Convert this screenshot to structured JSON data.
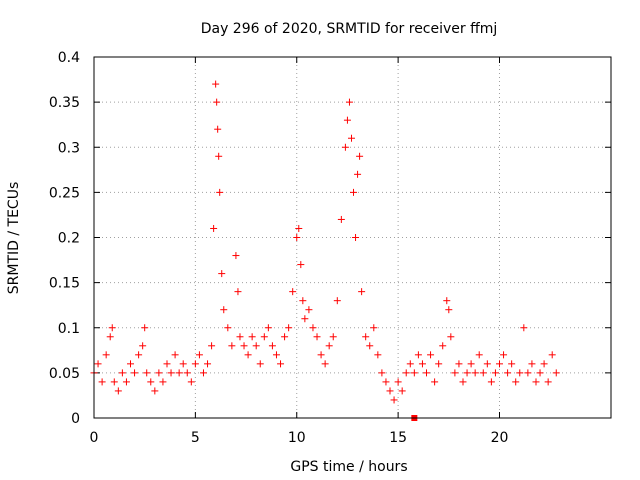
{
  "chart_data": {
    "type": "scatter",
    "title": "Day 296 of 2020, SRMTID for receiver ffmj",
    "xlabel": "GPS time / hours",
    "ylabel": "SRMTID / TECUs",
    "xlim": [
      0,
      25.5
    ],
    "ylim": [
      0,
      0.4
    ],
    "xticks": [
      0,
      5,
      10,
      15,
      20
    ],
    "xtick_labels": [
      "0",
      "5",
      "10",
      "15",
      "20"
    ],
    "yticks": [
      0,
      0.05,
      0.1,
      0.15,
      0.2,
      0.25,
      0.3,
      0.35,
      0.4
    ],
    "ytick_labels": [
      "0",
      "0.05",
      "0.1",
      "0.15",
      "0.2",
      "0.25",
      "0.3",
      "0.35",
      "0.4"
    ],
    "grid": true,
    "marker": "plus",
    "color": "#ff0000",
    "marker_hour_x": 15.8,
    "series": [
      {
        "name": "SRMTID",
        "x": [
          0.0,
          0.2,
          0.4,
          0.6,
          0.8,
          0.9,
          1.0,
          1.2,
          1.4,
          1.6,
          1.8,
          2.0,
          2.2,
          2.4,
          2.5,
          2.6,
          2.8,
          3.0,
          3.2,
          3.4,
          3.6,
          3.8,
          4.0,
          4.2,
          4.4,
          4.6,
          4.8,
          5.0,
          5.2,
          5.4,
          5.6,
          5.8,
          5.9,
          6.0,
          6.05,
          6.1,
          6.15,
          6.2,
          6.3,
          6.4,
          6.6,
          6.8,
          7.0,
          7.1,
          7.2,
          7.4,
          7.6,
          7.8,
          8.0,
          8.2,
          8.4,
          8.6,
          8.8,
          9.0,
          9.2,
          9.4,
          9.6,
          9.8,
          10.0,
          10.1,
          10.2,
          10.3,
          10.4,
          10.6,
          10.8,
          11.0,
          11.2,
          11.4,
          11.6,
          11.8,
          12.0,
          12.2,
          12.4,
          12.5,
          12.6,
          12.7,
          12.8,
          12.9,
          13.0,
          13.1,
          13.2,
          13.4,
          13.6,
          13.8,
          14.0,
          14.2,
          14.4,
          14.6,
          14.8,
          15.0,
          15.2,
          15.4,
          15.6,
          15.8,
          16.0,
          16.2,
          16.4,
          16.6,
          16.8,
          17.0,
          17.2,
          17.4,
          17.5,
          17.6,
          17.8,
          18.0,
          18.2,
          18.4,
          18.6,
          18.8,
          19.0,
          19.2,
          19.4,
          19.6,
          19.8,
          20.0,
          20.2,
          20.4,
          20.6,
          20.8,
          21.0,
          21.2,
          21.4,
          21.6,
          21.8,
          22.0,
          22.2,
          22.4,
          22.6,
          22.8
        ],
        "y": [
          0.05,
          0.06,
          0.04,
          0.07,
          0.09,
          0.1,
          0.04,
          0.03,
          0.05,
          0.04,
          0.06,
          0.05,
          0.07,
          0.08,
          0.1,
          0.05,
          0.04,
          0.03,
          0.05,
          0.04,
          0.06,
          0.05,
          0.07,
          0.05,
          0.06,
          0.05,
          0.04,
          0.06,
          0.07,
          0.05,
          0.06,
          0.08,
          0.21,
          0.37,
          0.35,
          0.32,
          0.29,
          0.25,
          0.16,
          0.12,
          0.1,
          0.08,
          0.18,
          0.14,
          0.09,
          0.08,
          0.07,
          0.09,
          0.08,
          0.06,
          0.09,
          0.1,
          0.08,
          0.07,
          0.06,
          0.09,
          0.1,
          0.14,
          0.2,
          0.21,
          0.17,
          0.13,
          0.11,
          0.12,
          0.1,
          0.09,
          0.07,
          0.06,
          0.08,
          0.09,
          0.13,
          0.22,
          0.3,
          0.33,
          0.35,
          0.31,
          0.25,
          0.2,
          0.27,
          0.29,
          0.14,
          0.09,
          0.08,
          0.1,
          0.07,
          0.05,
          0.04,
          0.03,
          0.02,
          0.04,
          0.03,
          0.05,
          0.06,
          0.05,
          0.07,
          0.06,
          0.05,
          0.07,
          0.04,
          0.06,
          0.08,
          0.13,
          0.12,
          0.09,
          0.05,
          0.06,
          0.04,
          0.05,
          0.06,
          0.05,
          0.07,
          0.05,
          0.06,
          0.04,
          0.05,
          0.06,
          0.07,
          0.05,
          0.06,
          0.04,
          0.05,
          0.1,
          0.05,
          0.06,
          0.04,
          0.05,
          0.06,
          0.04,
          0.07,
          0.05
        ]
      }
    ]
  }
}
